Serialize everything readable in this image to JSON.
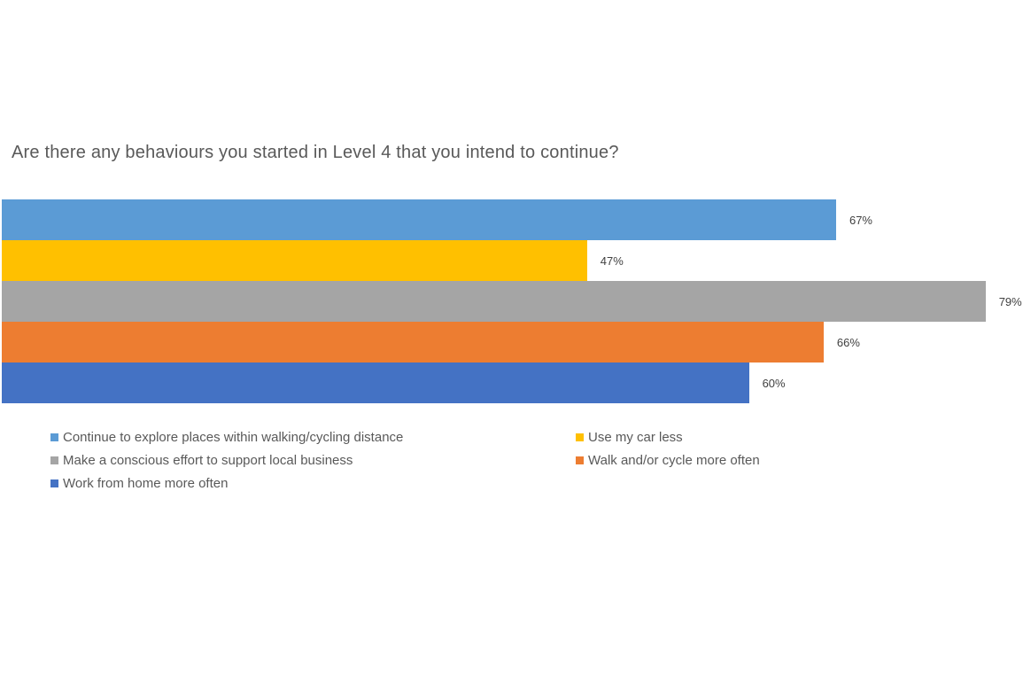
{
  "chart_data": {
    "type": "bar",
    "orientation": "horizontal",
    "title": "Are there any behaviours you started in Level 4 that you intend to continue?",
    "categories": [
      "Continue to explore places within walking/cycling distance",
      "Use my car less",
      "Make a conscious effort to support local business",
      "Walk and/or cycle more often",
      "Work from home more often"
    ],
    "values": [
      67,
      47,
      79,
      66,
      60
    ],
    "value_labels": [
      "67%",
      "47%",
      "79%",
      "66%",
      "60%"
    ],
    "colors": [
      "#5B9BD5",
      "#FFC000",
      "#A5A5A5",
      "#ED7D31",
      "#4472C4"
    ],
    "xlim": [
      0,
      100
    ],
    "grid": false,
    "axes_visible": false,
    "data_labels": true,
    "legend_position": "bottom",
    "legend": [
      {
        "label": "Continue to explore places within walking/cycling distance",
        "color": "#5B9BD5"
      },
      {
        "label": "Use my car less",
        "color": "#FFC000"
      },
      {
        "label": "Make a conscious effort to support local business",
        "color": "#A5A5A5"
      },
      {
        "label": "Walk and/or cycle more often",
        "color": "#ED7D31"
      },
      {
        "label": "Work from home more often",
        "color": "#4472C4"
      }
    ]
  },
  "text_colors": {
    "title": "#595959",
    "data_labels": "#404040",
    "legend": "#595959"
  },
  "page": {
    "background": "#FFFFFF"
  }
}
